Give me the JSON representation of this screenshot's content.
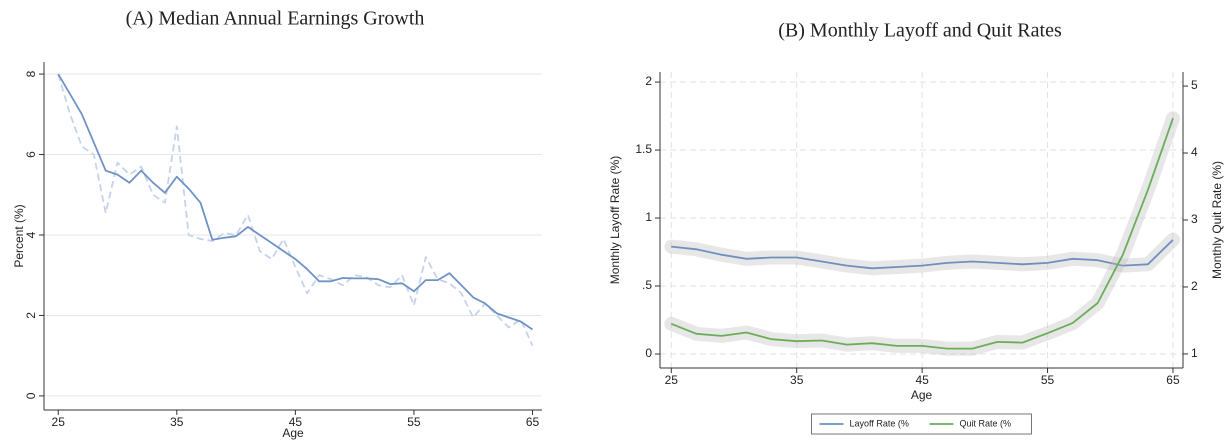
{
  "chart_data": [
    {
      "type": "line",
      "title": "(A) Median Annual Earnings Growth",
      "x_label": "Age",
      "y_label": "Percent (%)",
      "x": [
        25,
        26,
        27,
        28,
        29,
        30,
        31,
        32,
        33,
        34,
        35,
        36,
        37,
        38,
        39,
        40,
        41,
        42,
        43,
        44,
        45,
        46,
        47,
        48,
        49,
        50,
        51,
        52,
        53,
        54,
        55,
        56,
        57,
        58,
        59,
        60,
        61,
        62,
        63,
        64,
        65
      ],
      "series": [
        {
          "color": "#c5d3ea",
          "dash": true,
          "values": [
            8.0,
            7.0,
            6.2,
            6.0,
            4.55,
            5.8,
            5.5,
            5.7,
            5.0,
            4.8,
            6.7,
            4.0,
            3.9,
            3.85,
            4.05,
            4.0,
            4.5,
            3.6,
            3.4,
            3.9,
            3.2,
            2.55,
            3.0,
            2.9,
            2.75,
            3.0,
            2.95,
            2.75,
            2.7,
            3.0,
            2.25,
            3.45,
            2.9,
            2.8,
            2.55,
            1.95,
            2.3,
            2.0,
            1.7,
            1.9,
            1.25
          ]
        },
        {
          "color": "#6f93c6",
          "dash": false,
          "values": [
            8.0,
            7.5,
            7.0,
            6.3,
            5.6,
            5.5,
            5.3,
            5.6,
            5.3,
            5.05,
            5.45,
            5.15,
            4.8,
            3.88,
            3.93,
            3.97,
            4.2,
            4.0,
            3.8,
            3.6,
            3.4,
            3.15,
            2.85,
            2.85,
            2.93,
            2.92,
            2.92,
            2.9,
            2.78,
            2.8,
            2.6,
            2.88,
            2.88,
            3.05,
            2.75,
            2.45,
            2.3,
            2.05,
            1.95,
            1.85,
            1.65
          ]
        }
      ],
      "xlim": [
        23.8,
        65.8
      ],
      "ylim": [
        -0.35,
        8.3
      ],
      "xticks": [
        25,
        35,
        45,
        55,
        65
      ],
      "yticks": [
        0,
        2,
        4,
        6,
        8
      ],
      "grid": true,
      "xgrid": false
    },
    {
      "type": "line",
      "title": "(B) Monthly Layoff and Quit Rates",
      "x_label": "Age",
      "y_label": "Monthly Layoff Rate (%)",
      "y2_label": "Monthly Quit Rate (%)",
      "x": [
        25,
        27,
        29,
        31,
        33,
        35,
        37,
        39,
        41,
        43,
        45,
        47,
        49,
        51,
        53,
        55,
        57,
        59,
        61,
        63,
        65
      ],
      "series": [
        {
          "name": "Layoff Rate (%",
          "color": "#6f8fbf",
          "values": [
            0.79,
            0.77,
            0.73,
            0.7,
            0.71,
            0.71,
            0.68,
            0.65,
            0.63,
            0.64,
            0.65,
            0.67,
            0.68,
            0.67,
            0.66,
            0.67,
            0.7,
            0.69,
            0.65,
            0.66,
            0.84
          ]
        },
        {
          "name": "Quit Rate (%",
          "color": "#6aae5a",
          "axis": "y2",
          "values": [
            1.45,
            1.3,
            1.27,
            1.32,
            1.22,
            1.19,
            1.2,
            1.14,
            1.16,
            1.12,
            1.12,
            1.08,
            1.08,
            1.18,
            1.17,
            1.31,
            1.46,
            1.76,
            2.48,
            3.45,
            4.52
          ]
        }
      ],
      "xlim": [
        24.1,
        65.8
      ],
      "ylim": [
        -0.103,
        2.074
      ],
      "y2lim": [
        0.79,
        5.21
      ],
      "xticks": [
        25,
        35,
        45,
        55,
        65
      ],
      "yticks": [
        0,
        {
          "value": 0.5,
          "label": ".5"
        },
        1,
        1.5,
        2
      ],
      "y2ticks": [
        1,
        2,
        3,
        4,
        5
      ],
      "grid": true,
      "xgrid": true,
      "legend": "bottom"
    }
  ]
}
